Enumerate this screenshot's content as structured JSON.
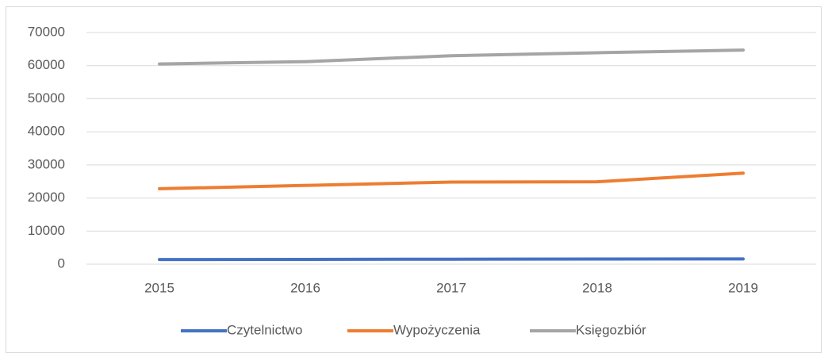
{
  "chart_data": {
    "type": "line",
    "categories": [
      "2015",
      "2016",
      "2017",
      "2018",
      "2019"
    ],
    "series": [
      {
        "name": "Czytelnictwo",
        "color": "#4472c4",
        "values": [
          1400,
          1450,
          1500,
          1550,
          1600
        ]
      },
      {
        "name": "Wypożyczenia",
        "color": "#ed7d31",
        "values": [
          22800,
          23800,
          24800,
          24900,
          27500
        ]
      },
      {
        "name": "Księgozbiór",
        "color": "#a5a5a5",
        "values": [
          60500,
          61200,
          63000,
          63900,
          64700
        ]
      }
    ],
    "ylim": [
      0,
      70000
    ],
    "yticks": [
      0,
      10000,
      20000,
      30000,
      40000,
      50000,
      60000,
      70000
    ],
    "grid": true,
    "legend": "bottom"
  }
}
